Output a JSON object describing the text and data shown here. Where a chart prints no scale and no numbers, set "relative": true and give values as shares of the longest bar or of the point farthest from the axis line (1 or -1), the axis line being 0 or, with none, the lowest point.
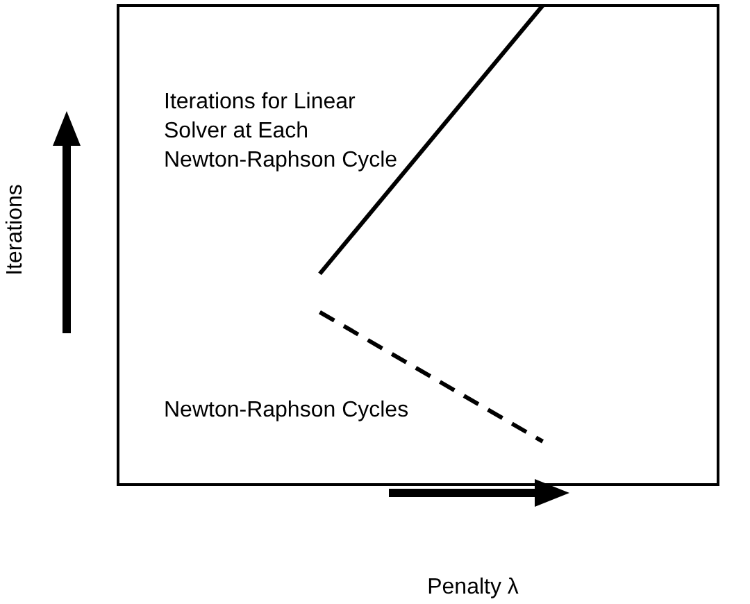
{
  "chart_data": {
    "type": "line",
    "relative": true,
    "xlabel": "Penalty λ",
    "ylabel": "Iterations",
    "categories": [
      null,
      null
    ],
    "series": [
      {
        "name": "Iterations for Linear Solver at Each Newton-Raphson Cycle",
        "color": "#000000",
        "line_style": "solid",
        "values": [
          0.44,
          1
        ]
      },
      {
        "name": "Newton-Raphson Cycles",
        "color": "#000000",
        "line_style": "dashed",
        "values": [
          0.36,
          0.09
        ]
      }
    ]
  }
}
